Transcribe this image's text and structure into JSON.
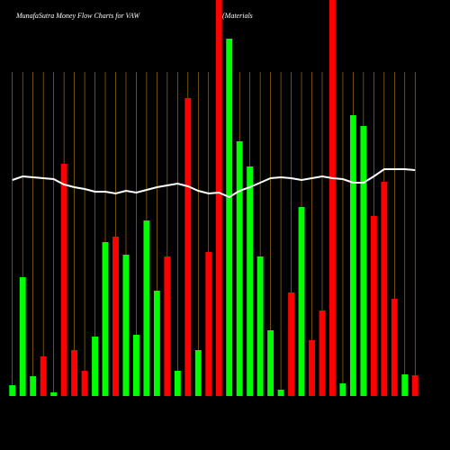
{
  "chart_data": {
    "type": "bar",
    "title": "MunafaSutra  Money Flow  Charts for VAW",
    "subtitle": "(Materials ETF)",
    "categories": [
      null,
      null,
      null,
      null,
      null,
      null,
      null,
      null,
      null,
      null,
      null,
      null,
      null,
      null,
      null,
      null,
      null,
      null,
      null,
      null,
      null,
      null,
      null,
      null,
      null,
      null,
      null,
      null,
      null,
      null,
      null,
      null,
      null,
      null,
      null,
      null,
      null,
      null,
      null,
      null
    ],
    "values": [
      12,
      132,
      22,
      44,
      4,
      258,
      51,
      28,
      66,
      171,
      177,
      157,
      68,
      195,
      117,
      155,
      28,
      331,
      51,
      160,
      440,
      397,
      283,
      255,
      155,
      73,
      7,
      115,
      210,
      62,
      95,
      440,
      14,
      312,
      300,
      200,
      238,
      108,
      24,
      23
    ],
    "colors": [
      "#00ff00",
      "#00ff00",
      "#00ff00",
      "#ff0000",
      "#00ff00",
      "#ff0000",
      "#ff0000",
      "#ff0000",
      "#00ff00",
      "#00ff00",
      "#ff0000",
      "#00ff00",
      "#00ff00",
      "#00ff00",
      "#00ff00",
      "#ff0000",
      "#00ff00",
      "#ff0000",
      "#00ff00",
      "#ff0000",
      "#ff0000",
      "#00ff00",
      "#00ff00",
      "#00ff00",
      "#00ff00",
      "#00ff00",
      "#00ff00",
      "#ff0000",
      "#00ff00",
      "#ff0000",
      "#ff0000",
      "#ff0000",
      "#00ff00",
      "#00ff00",
      "#00ff00",
      "#ff0000",
      "#ff0000",
      "#ff0000",
      "#00ff00",
      "#ff0000"
    ],
    "line": {
      "color": "#ffffff",
      "values": [
        240,
        244,
        243,
        242,
        241,
        235,
        232,
        230,
        227,
        227,
        225,
        228,
        226,
        229,
        232,
        234,
        236,
        233,
        228,
        225,
        226,
        221,
        228,
        232,
        237,
        242,
        243,
        242,
        240,
        242,
        244,
        242,
        241,
        237,
        237,
        244,
        252,
        252,
        252,
        251
      ]
    },
    "grid_color": "#b8860b",
    "ylim": [
      0,
      440
    ]
  }
}
